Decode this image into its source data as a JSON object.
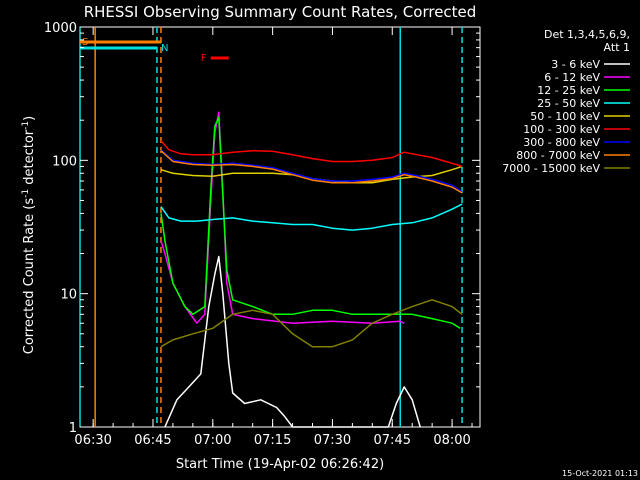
{
  "chart_data": {
    "type": "line",
    "title": "RHESSI Observing Summary Count Rates, Corrected",
    "xlabel": "Start Time (19-Apr-02 06:26:42)",
    "ylabel": "Corrected Count Rate (s",
    "ylabel_sup1": "-1",
    "ylabel_mid": " detector",
    "ylabel_sup2": "-1",
    "ylabel_end": ")",
    "yscale": "log",
    "xlim": [
      "06:26:42",
      "08:07:00"
    ],
    "ylim": [
      1,
      1000
    ],
    "x_ticks": [
      "06:30",
      "06:45",
      "07:00",
      "07:15",
      "07:30",
      "07:45",
      "08:00"
    ],
    "y_ticks": [
      "1",
      "10",
      "100",
      "1000"
    ],
    "legend": {
      "header1": "Det 1,3,4,5,6,9,",
      "header2": "Att 1",
      "placement": "right"
    },
    "flags": [
      {
        "label": "S",
        "color": "#ff8000",
        "start": "06:26:42",
        "end": "06:47:00"
      },
      {
        "label": "N",
        "color": "#00e0e0",
        "start": "06:26:42",
        "end": "06:46:00"
      },
      {
        "label": "F",
        "color": "#ff0000",
        "start": "06:59:30",
        "end": "07:04:00"
      }
    ],
    "markers": [
      {
        "time": "06:26:42",
        "color": "#00e0e0",
        "style": "solid"
      },
      {
        "time": "06:30:30",
        "color": "#ff8000",
        "style": "solid"
      },
      {
        "time": "06:46:00",
        "color": "#00e0e0",
        "style": "dashed"
      },
      {
        "time": "06:47:00",
        "color": "#ff8000",
        "style": "dashed"
      },
      {
        "time": "07:47:00",
        "color": "#00e0e0",
        "style": "solid"
      },
      {
        "time": "08:02:30",
        "color": "#00e0e0",
        "style": "dashed"
      }
    ],
    "series": [
      {
        "name": "3 - 6 keV",
        "color": "#ffffff",
        "points": [
          [
            "06:48:00",
            1
          ],
          [
            "06:51:00",
            1.6
          ],
          [
            "06:54:00",
            2
          ],
          [
            "06:57:00",
            2.5
          ],
          [
            "06:59:00",
            8
          ],
          [
            "07:00:30",
            14
          ],
          [
            "07:01:30",
            19
          ],
          [
            "07:02:30",
            10
          ],
          [
            "07:04:00",
            3
          ],
          [
            "07:05:00",
            1.8
          ],
          [
            "07:08:00",
            1.5
          ],
          [
            "07:12:00",
            1.6
          ],
          [
            "07:16:00",
            1.4
          ],
          [
            "07:18:00",
            1.2
          ],
          [
            "07:20:00",
            1
          ],
          [
            "07:44:00",
            1
          ],
          [
            "07:46:00",
            1.5
          ],
          [
            "07:48:00",
            2
          ],
          [
            "07:50:00",
            1.6
          ],
          [
            "07:52:00",
            1
          ]
        ]
      },
      {
        "name": "6 - 12 keV",
        "color": "#ff00ff",
        "points": [
          [
            "06:47:00",
            25
          ],
          [
            "06:48:00",
            20
          ],
          [
            "06:50:00",
            12
          ],
          [
            "06:53:00",
            8
          ],
          [
            "06:56:00",
            6
          ],
          [
            "06:58:00",
            7
          ],
          [
            "06:59:30",
            50
          ],
          [
            "07:00:30",
            160
          ],
          [
            "07:01:30",
            230
          ],
          [
            "07:02:30",
            60
          ],
          [
            "07:03:30",
            12
          ],
          [
            "07:05:00",
            7
          ],
          [
            "07:10:00",
            6.5
          ],
          [
            "07:20:00",
            6
          ],
          [
            "07:30:00",
            6.2
          ],
          [
            "07:40:00",
            6
          ],
          [
            "07:47:00",
            6.2
          ],
          [
            "07:48:00",
            6
          ]
        ]
      },
      {
        "name": "12 - 25 keV",
        "color": "#00ff00",
        "points": [
          [
            "06:47:00",
            40
          ],
          [
            "06:48:00",
            25
          ],
          [
            "06:50:00",
            12
          ],
          [
            "06:53:00",
            8
          ],
          [
            "06:55:00",
            7
          ],
          [
            "06:58:00",
            8
          ],
          [
            "06:59:30",
            60
          ],
          [
            "07:00:30",
            180
          ],
          [
            "07:01:30",
            210
          ],
          [
            "07:02:30",
            55
          ],
          [
            "07:03:30",
            15
          ],
          [
            "07:05:00",
            9
          ],
          [
            "07:10:00",
            8
          ],
          [
            "07:15:00",
            7
          ],
          [
            "07:20:00",
            7
          ],
          [
            "07:25:00",
            7.5
          ],
          [
            "07:30:00",
            7.5
          ],
          [
            "07:35:00",
            7
          ],
          [
            "07:40:00",
            7
          ],
          [
            "07:47:00",
            7
          ],
          [
            "07:50:00",
            7
          ],
          [
            "07:55:00",
            6.5
          ],
          [
            "08:00:00",
            6
          ],
          [
            "08:02:00",
            5.5
          ]
        ]
      },
      {
        "name": "25 - 50 keV",
        "color": "#00ffff",
        "points": [
          [
            "06:47:00",
            45
          ],
          [
            "06:49:00",
            37
          ],
          [
            "06:52:00",
            35
          ],
          [
            "06:56:00",
            35
          ],
          [
            "07:00:00",
            36
          ],
          [
            "07:05:00",
            37
          ],
          [
            "07:10:00",
            35
          ],
          [
            "07:15:00",
            34
          ],
          [
            "07:20:00",
            33
          ],
          [
            "07:25:00",
            33
          ],
          [
            "07:30:00",
            31
          ],
          [
            "07:35:00",
            30
          ],
          [
            "07:40:00",
            31
          ],
          [
            "07:45:00",
            33
          ],
          [
            "07:50:00",
            34
          ],
          [
            "07:55:00",
            37
          ],
          [
            "08:00:00",
            43
          ],
          [
            "08:02:30",
            47
          ]
        ]
      },
      {
        "name": "50 - 100 keV",
        "color": "#e0d000",
        "points": [
          [
            "06:47:00",
            85
          ],
          [
            "06:50:00",
            80
          ],
          [
            "06:55:00",
            77
          ],
          [
            "07:00:00",
            76
          ],
          [
            "07:05:00",
            80
          ],
          [
            "07:10:00",
            80
          ],
          [
            "07:15:00",
            80
          ],
          [
            "07:20:00",
            78
          ],
          [
            "07:25:00",
            73
          ],
          [
            "07:30:00",
            70
          ],
          [
            "07:35:00",
            68
          ],
          [
            "07:40:00",
            68
          ],
          [
            "07:45:00",
            72
          ],
          [
            "07:50:00",
            75
          ],
          [
            "07:55:00",
            77
          ],
          [
            "08:00:00",
            85
          ],
          [
            "08:02:30",
            90
          ]
        ]
      },
      {
        "name": "100 - 300 keV",
        "color": "#ff0000",
        "points": [
          [
            "06:47:00",
            140
          ],
          [
            "06:49:00",
            120
          ],
          [
            "06:52:00",
            112
          ],
          [
            "06:55:00",
            110
          ],
          [
            "07:00:00",
            110
          ],
          [
            "07:05:00",
            115
          ],
          [
            "07:10:00",
            118
          ],
          [
            "07:15:00",
            117
          ],
          [
            "07:20:00",
            110
          ],
          [
            "07:25:00",
            103
          ],
          [
            "07:30:00",
            98
          ],
          [
            "07:35:00",
            98
          ],
          [
            "07:40:00",
            100
          ],
          [
            "07:45:00",
            105
          ],
          [
            "07:48:00",
            115
          ],
          [
            "07:50:00",
            112
          ],
          [
            "07:55:00",
            105
          ],
          [
            "08:00:00",
            95
          ],
          [
            "08:02:30",
            90
          ]
        ]
      },
      {
        "name": "300 - 800 keV",
        "color": "#0000ff",
        "points": [
          [
            "06:47:00",
            120
          ],
          [
            "06:50:00",
            100
          ],
          [
            "06:55:00",
            95
          ],
          [
            "07:00:00",
            93
          ],
          [
            "07:05:00",
            95
          ],
          [
            "07:10:00",
            92
          ],
          [
            "07:15:00",
            88
          ],
          [
            "07:20:00",
            80
          ],
          [
            "07:25:00",
            73
          ],
          [
            "07:30:00",
            70
          ],
          [
            "07:35:00",
            70
          ],
          [
            "07:40:00",
            72
          ],
          [
            "07:45:00",
            75
          ],
          [
            "07:48:00",
            80
          ],
          [
            "07:50:00",
            78
          ],
          [
            "07:55:00",
            72
          ],
          [
            "08:00:00",
            65
          ],
          [
            "08:02:30",
            58
          ]
        ]
      },
      {
        "name": "800 - 7000 keV",
        "color": "#ff8000",
        "points": [
          [
            "06:47:00",
            118
          ],
          [
            "06:50:00",
            98
          ],
          [
            "06:55:00",
            93
          ],
          [
            "07:00:00",
            92
          ],
          [
            "07:05:00",
            93
          ],
          [
            "07:10:00",
            90
          ],
          [
            "07:15:00",
            86
          ],
          [
            "07:20:00",
            78
          ],
          [
            "07:25:00",
            71
          ],
          [
            "07:30:00",
            68
          ],
          [
            "07:35:00",
            68
          ],
          [
            "07:40:00",
            70
          ],
          [
            "07:45:00",
            73
          ],
          [
            "07:48:00",
            78
          ],
          [
            "07:50:00",
            76
          ],
          [
            "07:55:00",
            70
          ],
          [
            "08:00:00",
            63
          ],
          [
            "08:02:30",
            57
          ]
        ]
      },
      {
        "name": "7000 - 15000 keV",
        "color": "#808000",
        "points": [
          [
            "06:47:00",
            4
          ],
          [
            "06:50:00",
            4.5
          ],
          [
            "06:55:00",
            5
          ],
          [
            "07:00:00",
            5.5
          ],
          [
            "07:05:00",
            7
          ],
          [
            "07:10:00",
            7.5
          ],
          [
            "07:15:00",
            7
          ],
          [
            "07:20:00",
            5
          ],
          [
            "07:25:00",
            4
          ],
          [
            "07:30:00",
            4
          ],
          [
            "07:35:00",
            4.5
          ],
          [
            "07:40:00",
            6
          ],
          [
            "07:45:00",
            7
          ],
          [
            "07:50:00",
            8
          ],
          [
            "07:55:00",
            9
          ],
          [
            "08:00:00",
            8
          ],
          [
            "08:02:30",
            7
          ]
        ]
      }
    ]
  },
  "footer": {
    "timestamp": "15-Oct-2021 01:13"
  }
}
